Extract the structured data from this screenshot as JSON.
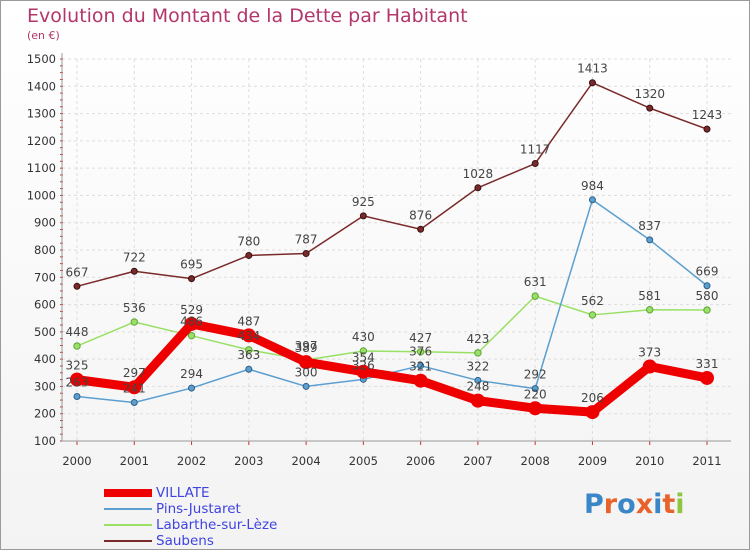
{
  "title": "Evolution du Montant de la Dette par Habitant",
  "unit_label": "(en €)",
  "logo_text": "Proxiti",
  "chart_data": {
    "type": "line",
    "x": [
      "2000",
      "2001",
      "2002",
      "2003",
      "2004",
      "2005",
      "2006",
      "2007",
      "2008",
      "2009",
      "2010",
      "2011"
    ],
    "ylim": [
      100,
      1500
    ],
    "yticks": [
      100,
      200,
      300,
      400,
      500,
      600,
      700,
      800,
      900,
      1000,
      1100,
      1200,
      1300,
      1400,
      1500
    ],
    "grid": "on",
    "legend_placement": "bottom-left",
    "series": [
      {
        "name": "VILLATE",
        "color": "#ee0000",
        "values": [
          325,
          297,
          529,
          487,
          389,
          354,
          321,
          248,
          220,
          206,
          373,
          331
        ],
        "labels": [
          "325",
          "297",
          "529",
          "487",
          "389",
          "354",
          "321",
          "248",
          "220",
          "206",
          "373",
          "331"
        ]
      },
      {
        "name": "Pins-Justaret",
        "color": "#5b9fd0",
        "values": [
          263,
          241,
          294,
          363,
          300,
          326,
          376,
          322,
          292,
          984,
          837,
          669
        ],
        "labels": [
          "263",
          "241",
          "294",
          "363",
          "300",
          "326",
          "376",
          "322",
          "292",
          "984",
          "837",
          "669"
        ]
      },
      {
        "name": "Labarthe-sur-Lèze",
        "color": "#99e066",
        "values": [
          448,
          536,
          486,
          434,
          397,
          430,
          427,
          423,
          631,
          562,
          581,
          580
        ],
        "labels": [
          "448",
          "536",
          "486",
          "434",
          "397",
          "430",
          "427",
          "423",
          "631",
          "562",
          "581",
          "580"
        ]
      },
      {
        "name": "Saubens",
        "color": "#7a2a2a",
        "values": [
          667,
          722,
          695,
          780,
          787,
          925,
          876,
          1028,
          1117,
          1413,
          1320,
          1243
        ],
        "labels": [
          "667",
          "722",
          "695",
          "780",
          "787",
          "925",
          "876",
          "1028",
          "1117",
          "1413",
          "1320",
          "1243"
        ]
      }
    ]
  }
}
